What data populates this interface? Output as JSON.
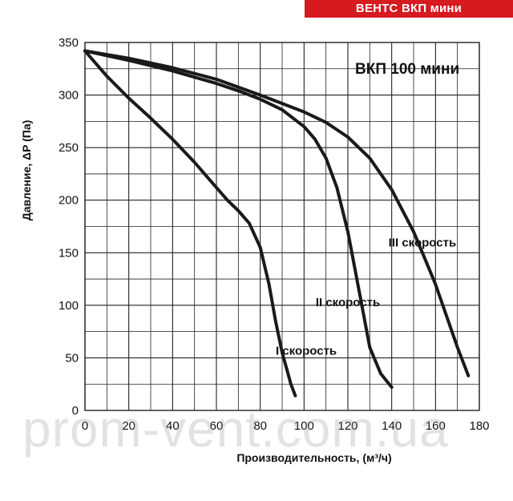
{
  "header": {
    "badge": "ВЕНТС ВКП мини"
  },
  "watermark": "prom-vent.com.ua",
  "colors": {
    "badge": "#d71920",
    "curve": "#1a1a1a",
    "grid": "#222222"
  },
  "chart_data": {
    "type": "line",
    "title": "ВКП 100 мини",
    "xlabel": "Производительность, (м³/ч)",
    "ylabel": "Давление, ΔP (Па)",
    "xlim": [
      0,
      180
    ],
    "ylim": [
      0,
      350
    ],
    "xticks": [
      0,
      20,
      40,
      60,
      80,
      100,
      120,
      140,
      160,
      180
    ],
    "yticks": [
      0,
      50,
      100,
      150,
      200,
      250,
      300,
      350
    ],
    "grid": true,
    "series": [
      {
        "name": "I скорость",
        "x": [
          0,
          10,
          20,
          30,
          40,
          50,
          60,
          65,
          70,
          75,
          80,
          84,
          87,
          90,
          92,
          94,
          96
        ],
        "y": [
          342,
          318,
          297,
          278,
          258,
          236,
          212,
          200,
          190,
          178,
          155,
          120,
          85,
          55,
          40,
          25,
          14
        ]
      },
      {
        "name": "II скорость",
        "x": [
          0,
          20,
          40,
          60,
          70,
          80,
          90,
          100,
          105,
          110,
          115,
          120,
          125,
          130,
          135,
          140
        ],
        "y": [
          342,
          333,
          323,
          311,
          304,
          296,
          286,
          270,
          258,
          240,
          212,
          170,
          115,
          60,
          35,
          22
        ]
      },
      {
        "name": "III скорость",
        "x": [
          0,
          20,
          40,
          60,
          80,
          100,
          110,
          120,
          130,
          140,
          150,
          155,
          160,
          165,
          170,
          175
        ],
        "y": [
          342,
          335,
          326,
          315,
          300,
          284,
          274,
          260,
          240,
          210,
          170,
          145,
          120,
          90,
          60,
          33
        ]
      }
    ],
    "annotations": [
      {
        "text": "I скорость",
        "x": 101,
        "y": 53
      },
      {
        "text": "II скорость",
        "x": 120,
        "y": 99
      },
      {
        "text": "III скорость",
        "x": 154,
        "y": 156
      }
    ]
  }
}
